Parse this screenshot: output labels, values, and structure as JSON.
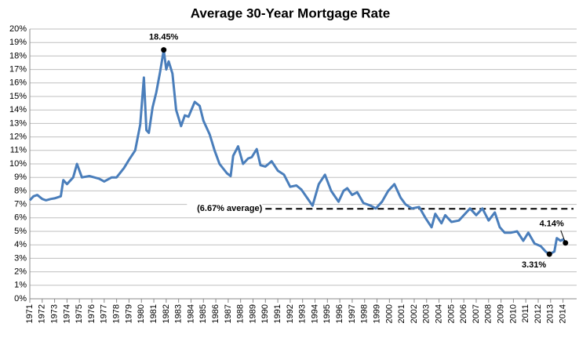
{
  "chart_data": {
    "type": "line",
    "title": "Average 30-Year Mortgage Rate",
    "color": "#4a7ebb",
    "x": [
      1971.0,
      1971.3,
      1971.6,
      1972.0,
      1972.3,
      1972.7,
      1973.0,
      1973.5,
      1973.7,
      1974.0,
      1974.5,
      1974.8,
      1975.2,
      1975.8,
      1976.2,
      1976.6,
      1977.0,
      1977.6,
      1978.0,
      1978.6,
      1979.0,
      1979.5,
      1979.9,
      1980.2,
      1980.4,
      1980.6,
      1980.9,
      1981.2,
      1981.5,
      1981.8,
      1982.0,
      1982.2,
      1982.5,
      1982.8,
      1983.2,
      1983.5,
      1983.8,
      1984.3,
      1984.7,
      1985.0,
      1985.5,
      1985.9,
      1986.3,
      1986.9,
      1987.2,
      1987.4,
      1987.8,
      1988.2,
      1988.6,
      1988.9,
      1989.3,
      1989.6,
      1990.0,
      1990.5,
      1991.0,
      1991.5,
      1992.0,
      1992.5,
      1992.9,
      1993.5,
      1993.8,
      1994.3,
      1994.8,
      1995.3,
      1995.9,
      1996.3,
      1996.6,
      1997.0,
      1997.4,
      1997.9,
      1998.5,
      1998.9,
      1999.4,
      1999.9,
      2000.4,
      2000.9,
      2001.3,
      2001.8,
      2002.4,
      2002.9,
      2003.4,
      2003.7,
      2004.2,
      2004.5,
      2005.0,
      2005.6,
      2006.0,
      2006.5,
      2007.0,
      2007.5,
      2008.0,
      2008.5,
      2008.9,
      2009.3,
      2009.8,
      2010.3,
      2010.8,
      2011.2,
      2011.7,
      2012.2,
      2012.6,
      2012.9,
      2013.3,
      2013.5,
      2013.8,
      2014.0,
      2014.2
    ],
    "values": [
      7.3,
      7.6,
      7.7,
      7.4,
      7.3,
      7.4,
      7.45,
      7.6,
      8.8,
      8.5,
      9.0,
      10.0,
      9.0,
      9.1,
      9.0,
      8.9,
      8.7,
      9.0,
      9.0,
      9.7,
      10.3,
      11.0,
      12.9,
      16.4,
      12.5,
      12.3,
      14.2,
      15.3,
      16.8,
      18.45,
      17.0,
      17.6,
      16.7,
      14.0,
      12.8,
      13.6,
      13.5,
      14.6,
      14.3,
      13.2,
      12.2,
      11.0,
      10.0,
      9.3,
      9.1,
      10.6,
      11.3,
      10.0,
      10.4,
      10.5,
      11.1,
      9.9,
      9.8,
      10.2,
      9.5,
      9.2,
      8.3,
      8.4,
      8.1,
      7.3,
      6.9,
      8.5,
      9.2,
      8.0,
      7.2,
      8.0,
      8.2,
      7.7,
      7.9,
      7.1,
      6.9,
      6.7,
      7.2,
      8.0,
      8.5,
      7.5,
      7.0,
      6.7,
      6.8,
      6.0,
      5.3,
      6.3,
      5.6,
      6.2,
      5.7,
      5.8,
      6.2,
      6.7,
      6.2,
      6.7,
      5.8,
      6.4,
      5.3,
      4.9,
      4.9,
      5.0,
      4.3,
      4.9,
      4.1,
      3.9,
      3.5,
      3.31,
      3.5,
      4.5,
      4.3,
      4.4,
      4.14
    ],
    "xlim": [
      1971,
      2015.1
    ],
    "xticks": [
      1971,
      1972,
      1973,
      1974,
      1975,
      1976,
      1977,
      1978,
      1979,
      1980,
      1981,
      1982,
      1983,
      1984,
      1985,
      1986,
      1987,
      1988,
      1989,
      1990,
      1991,
      1992,
      1993,
      1994,
      1995,
      1996,
      1997,
      1998,
      1999,
      2000,
      2001,
      2002,
      2003,
      2004,
      2005,
      2006,
      2007,
      2008,
      2009,
      2010,
      2011,
      2012,
      2013,
      2014
    ],
    "ylim": [
      0,
      20
    ],
    "yticks": [
      {
        "value": 0,
        "label": "0%"
      },
      {
        "value": 1,
        "label": "1%"
      },
      {
        "value": 2,
        "label": "2%"
      },
      {
        "value": 3,
        "label": "3%"
      },
      {
        "value": 4,
        "label": "4%"
      },
      {
        "value": 5,
        "label": "5%"
      },
      {
        "value": 6,
        "label": "6%"
      },
      {
        "value": 7,
        "label": "7%"
      },
      {
        "value": 8,
        "label": "8%"
      },
      {
        "value": 9,
        "label": "9%"
      },
      {
        "value": 10,
        "label": "10%"
      },
      {
        "value": 11,
        "label": "11%"
      },
      {
        "value": 12,
        "label": "12%"
      },
      {
        "value": 13,
        "label": "13%"
      },
      {
        "value": 14,
        "label": "14%"
      },
      {
        "value": 15,
        "label": "15%"
      },
      {
        "value": 16,
        "label": "16%"
      },
      {
        "value": 17,
        "label": "17%"
      },
      {
        "value": 18,
        "label": "18%"
      },
      {
        "value": 19,
        "label": "19%"
      },
      {
        "value": 20,
        "label": "20%"
      }
    ],
    "grid": true,
    "annotations": [
      {
        "text": "18.45%",
        "x": 1981.8,
        "y": 18.45
      },
      {
        "text": "3.31%",
        "x": 2012.9,
        "y": 3.31
      },
      {
        "text": "4.14%",
        "x": 2014.2,
        "y": 4.14
      }
    ],
    "average": {
      "value": 6.67,
      "label": "(6.67% average)",
      "x": 1990
    }
  }
}
